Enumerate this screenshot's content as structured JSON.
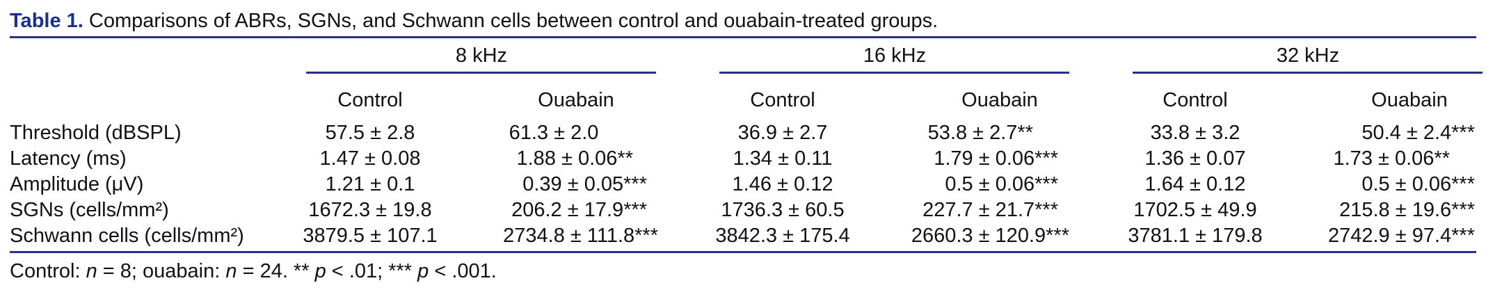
{
  "table": {
    "caption_label": "Table 1.",
    "caption_text": "Comparisons of ABRs, SGNs, and Schwann cells between control and ouabain-treated groups.",
    "groups": [
      "8 kHz",
      "16 kHz",
      "32 kHz"
    ],
    "subheaders": [
      "Control",
      "Ouabain",
      "Control",
      "Ouabain",
      "Control",
      "Ouabain"
    ],
    "rows": [
      {
        "label": "Threshold (dBSPL)",
        "values": [
          "57.5 ± 2.8",
          "61.3 ± 2.0",
          "36.9 ± 2.7",
          "53.8 ± 2.7**",
          "33.8 ± 3.2",
          "50.4 ± 2.4***"
        ]
      },
      {
        "label": "Latency (ms)",
        "values": [
          "1.47 ± 0.08",
          "1.88 ± 0.06**",
          "1.34 ± 0.11",
          "1.79 ± 0.06***",
          "1.36 ± 0.07",
          "1.73 ± 0.06**"
        ]
      },
      {
        "label": "Amplitude (μV)",
        "values": [
          "1.21 ± 0.1",
          "0.39 ± 0.05***",
          "1.46 ± 0.12",
          "0.5 ± 0.06***",
          "1.64 ± 0.12",
          "0.5 ± 0.06***"
        ]
      },
      {
        "label": "SGNs (cells/mm²)",
        "values": [
          "1672.3 ± 19.8",
          "206.2 ± 17.9***",
          "1736.3 ± 60.5",
          "227.7 ± 21.7***",
          "1702.5 ± 49.9",
          "215.8 ± 19.6***"
        ]
      },
      {
        "label": "Schwann cells (cells/mm²)",
        "values": [
          "3879.5 ± 107.1",
          "2734.8 ± 111.8***",
          "3842.3 ± 175.4",
          "2660.3 ± 120.9***",
          "3781.1 ± 179.8",
          "2742.9 ± 97.4***"
        ]
      }
    ],
    "footnote": {
      "part1": "Control: ",
      "n1": "n",
      "part2": " = 8; ouabain: ",
      "n2": "n",
      "part3": " = 24. ** ",
      "p1": "p",
      "part4": " < .01; *** ",
      "p2": "p",
      "part5": " < .001."
    },
    "accent_color": "#1a2e8c",
    "rule_color": "#2b2f8c"
  }
}
